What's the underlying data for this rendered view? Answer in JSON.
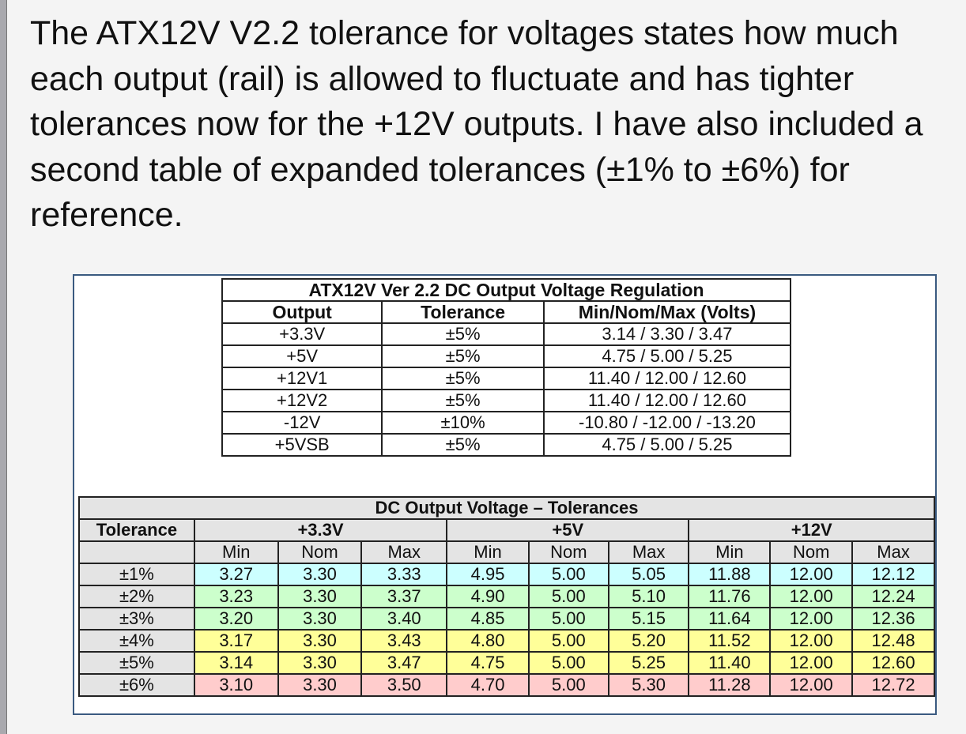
{
  "intro_text": "The ATX12V V2.2 tolerance for voltages states how much each output (rail) is allowed to fluctuate and has tighter tolerances now for the +12V outputs.  I have also included a second table of expanded tolerances (±1% to ±6%) for reference.",
  "regulation_table": {
    "title": "ATX12V Ver 2.2 DC Output Voltage Regulation",
    "headers": [
      "Output",
      "Tolerance",
      "Min/Nom/Max (Volts)"
    ],
    "rows": [
      [
        "+3.3V",
        "±5%",
        "3.14 / 3.30 / 3.47"
      ],
      [
        "+5V",
        "±5%",
        "4.75 / 5.00 / 5.25"
      ],
      [
        "+12V1",
        "±5%",
        "11.40 / 12.00 / 12.60"
      ],
      [
        "+12V2",
        "±5%",
        "11.40 / 12.00 / 12.60"
      ],
      [
        "-12V",
        "±10%",
        "-10.80 / -12.00 / -13.20"
      ],
      [
        "+5VSB",
        "±5%",
        "4.75 / 5.00 / 5.25"
      ]
    ]
  },
  "tolerance_table": {
    "title": "DC Output Voltage – Tolerances",
    "tolerance_header": "Tolerance",
    "groups": [
      "+3.3V",
      "+5V",
      "+12V"
    ],
    "subheaders": [
      "Min",
      "Nom",
      "Max",
      "Min",
      "Nom",
      "Max",
      "Min",
      "Nom",
      "Max"
    ],
    "row_colors": [
      "#ccffff",
      "#ccffcc",
      "#ccffcc",
      "#ffff99",
      "#ffff99",
      "#ffcccc"
    ],
    "rows": [
      {
        "tol": "±1%",
        "vals": [
          "3.27",
          "3.30",
          "3.33",
          "4.95",
          "5.00",
          "5.05",
          "11.88",
          "12.00",
          "12.12"
        ]
      },
      {
        "tol": "±2%",
        "vals": [
          "3.23",
          "3.30",
          "3.37",
          "4.90",
          "5.00",
          "5.10",
          "11.76",
          "12.00",
          "12.24"
        ]
      },
      {
        "tol": "±3%",
        "vals": [
          "3.20",
          "3.30",
          "3.40",
          "4.85",
          "5.00",
          "5.15",
          "11.64",
          "12.00",
          "12.36"
        ]
      },
      {
        "tol": "±4%",
        "vals": [
          "3.17",
          "3.30",
          "3.43",
          "4.80",
          "5.00",
          "5.20",
          "11.52",
          "12.00",
          "12.48"
        ]
      },
      {
        "tol": "±5%",
        "vals": [
          "3.14",
          "3.30",
          "3.47",
          "4.75",
          "5.00",
          "5.25",
          "11.40",
          "12.00",
          "12.60"
        ]
      },
      {
        "tol": "±6%",
        "vals": [
          "3.10",
          "3.30",
          "3.50",
          "4.70",
          "5.00",
          "5.30",
          "11.28",
          "12.00",
          "12.72"
        ]
      }
    ]
  }
}
